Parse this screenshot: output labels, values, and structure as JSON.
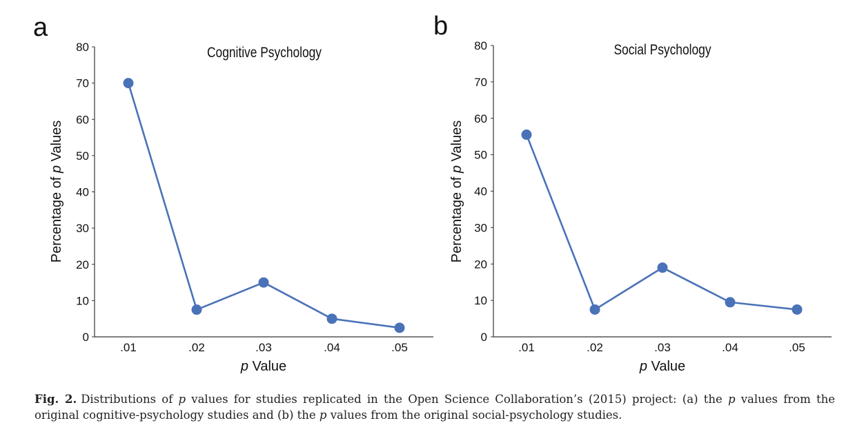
{
  "figure": {
    "caption_label": "Fig. 2.",
    "caption_text_before_p1": "Distributions of ",
    "caption_p1": "p",
    "caption_text_mid1": " values for studies replicated in the Open Science Collaboration’s (2015) project: (a) the ",
    "caption_p2": "p",
    "caption_text_mid2": " values from the original cognitive-psychology studies and (b) the ",
    "caption_p3": "p",
    "caption_text_end": " values from the original social-psychology studies."
  },
  "style": {
    "line_color": "#4a72b8",
    "marker_color": "#4a72b8",
    "axis_color": "#333333"
  },
  "chart_data": [
    {
      "type": "line",
      "panel_letter": "a",
      "title": "Cognitive Psychology",
      "categories": [
        ".01",
        ".02",
        ".03",
        ".04",
        ".05"
      ],
      "values": [
        70,
        7.5,
        15,
        5,
        2.5
      ],
      "xlabel_italic": "p",
      "xlabel_rest": " Value",
      "ylabel_before": "Percentage of ",
      "ylabel_italic": "p",
      "ylabel_after": " Values",
      "yticks": [
        0,
        10,
        20,
        30,
        40,
        50,
        60,
        70,
        80
      ],
      "ylim": [
        0,
        80
      ]
    },
    {
      "type": "line",
      "panel_letter": "b",
      "title": "Social Psychology",
      "categories": [
        ".01",
        ".02",
        ".03",
        ".04",
        ".05"
      ],
      "values": [
        55.5,
        7.5,
        19,
        9.5,
        7.5
      ],
      "xlabel_italic": "p",
      "xlabel_rest": " Value",
      "ylabel_before": "Percentage of ",
      "ylabel_italic": "p",
      "ylabel_after": " Values",
      "yticks": [
        0,
        10,
        20,
        30,
        40,
        50,
        60,
        70,
        80
      ],
      "ylim": [
        0,
        80
      ]
    }
  ]
}
